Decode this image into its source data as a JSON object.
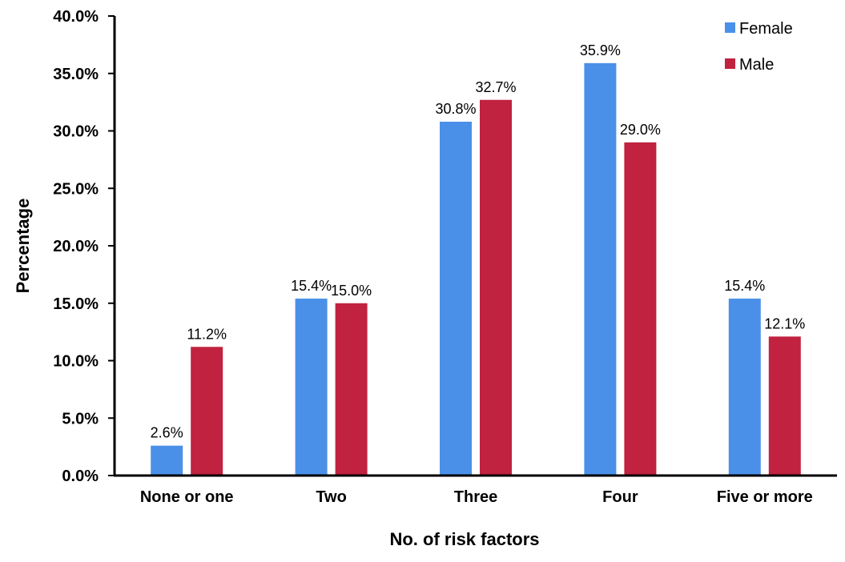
{
  "chart_data": {
    "type": "bar",
    "categories": [
      "None or one",
      "Two",
      "Three",
      "Four",
      "Five or more"
    ],
    "series": [
      {
        "name": "Female",
        "color": "#4a90e8",
        "values": [
          2.6,
          15.4,
          30.8,
          35.9,
          15.4
        ],
        "labels": [
          "2.6%",
          "15.4%",
          "30.8%",
          "35.9%",
          "15.4%"
        ]
      },
      {
        "name": "Male",
        "color": "#c0223f",
        "values": [
          11.2,
          15.0,
          32.7,
          29.0,
          12.1
        ],
        "labels": [
          "11.2%",
          "15.0%",
          "32.7%",
          "29.0%",
          "12.1%"
        ]
      }
    ],
    "xlabel": "No. of risk factors",
    "ylabel": "Percentage",
    "ylim": [
      0,
      40
    ],
    "yticks": [
      0,
      5,
      10,
      15,
      20,
      25,
      30,
      35,
      40
    ],
    "ytick_labels": [
      "0.0%",
      "5.0%",
      "10.0%",
      "15.0%",
      "20.0%",
      "25.0%",
      "30.0%",
      "35.0%",
      "40.0%"
    ],
    "grid": false,
    "legend_position": "top-right"
  }
}
